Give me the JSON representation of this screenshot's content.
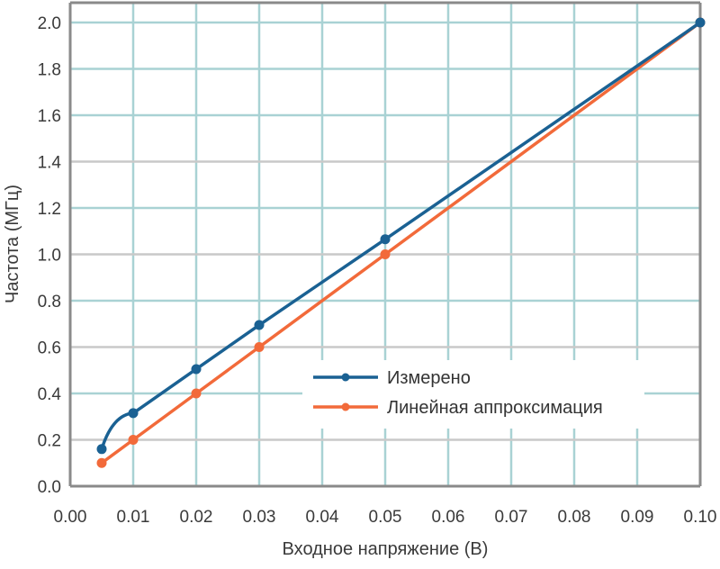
{
  "chart_data": {
    "type": "line",
    "title": "",
    "xlabel": "Входное напряжение (В)",
    "ylabel": "Частота (МГц)",
    "xlim": [
      0.0,
      0.1
    ],
    "ylim": [
      0.0,
      2.0
    ],
    "x_ticks": [
      "0.00",
      "0.01",
      "0.02",
      "0.03",
      "0.04",
      "0.05",
      "0.06",
      "0.07",
      "0.08",
      "0.09",
      "0.10"
    ],
    "y_ticks": [
      "0.0",
      "0.2",
      "0.4",
      "0.6",
      "0.8",
      "1.0",
      "1.2",
      "1.4",
      "1.6",
      "1.8",
      "2.0"
    ],
    "grid": true,
    "legend_position": "center-right (inside plot)",
    "series": [
      {
        "name": "Измерено",
        "color": "#1a6193",
        "x": [
          0.005,
          0.01,
          0.02,
          0.03,
          0.05,
          0.1
        ],
        "y": [
          0.16,
          0.315,
          0.505,
          0.695,
          1.065,
          2.0
        ]
      },
      {
        "name": "Линейная аппроксимация",
        "color": "#f26a3a",
        "x": [
          0.005,
          0.01,
          0.02,
          0.03,
          0.05,
          0.1
        ],
        "y": [
          0.1,
          0.2,
          0.4,
          0.6,
          1.0,
          2.0
        ]
      }
    ]
  },
  "colors": {
    "grid_vertical": "#a9d2d4",
    "grid_horizontal_teal": "#a9d2d4",
    "grid_horizontal_gray": "#c9c9c9",
    "axis": "#8a8a8a",
    "text": "#3a3a3a"
  }
}
